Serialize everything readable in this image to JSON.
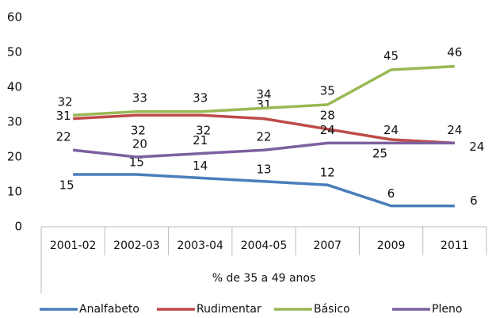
{
  "chart_data": {
    "type": "line",
    "categories": [
      "2001-02",
      "2002-03",
      "2003-04",
      "2004-05",
      "2007",
      "2009",
      "2011"
    ],
    "xlabel": "% de 35 a 49 anos",
    "series": [
      {
        "name": "Analfabeto",
        "color": "#4a7ebb",
        "values": [
          15,
          15,
          14,
          13,
          12,
          6,
          6
        ]
      },
      {
        "name": "Rudimentar",
        "color": "#be4b48",
        "values": [
          31,
          32,
          32,
          31,
          28,
          25,
          24
        ]
      },
      {
        "name": "Básico",
        "color": "#98b954",
        "values": [
          32,
          33,
          33,
          34,
          35,
          45,
          46
        ]
      },
      {
        "name": "Pleno",
        "color": "#7d60a0",
        "values": [
          22,
          20,
          21,
          22,
          24,
          24,
          24
        ]
      }
    ],
    "ylim": [
      0,
      60
    ],
    "yticks": [
      0,
      10,
      20,
      30,
      40,
      50,
      60
    ],
    "grid": false,
    "legend": "bottom"
  }
}
